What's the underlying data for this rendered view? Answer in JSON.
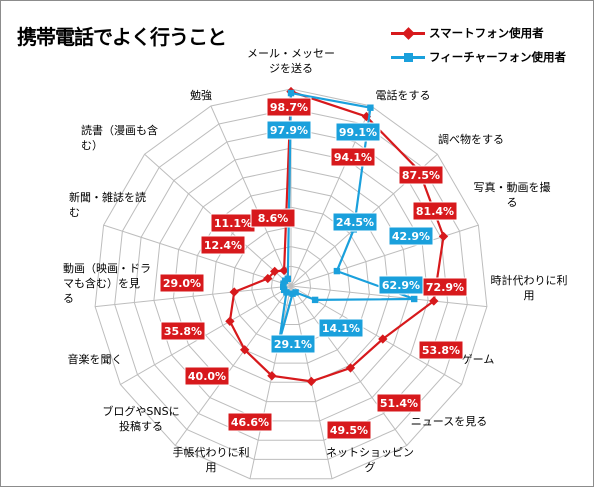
{
  "title": "携帯電話でよく行うこと",
  "legend": {
    "smart": "スマートフォン使用者",
    "feature": "フィーチャーフォン使用者"
  },
  "colors": {
    "smart": "#d7191c",
    "feature": "#1aa0dc",
    "grid": "#bdbdbd"
  },
  "chart_data": {
    "type": "radar",
    "title": "携帯電話でよく行うこと",
    "rmax": 100,
    "categories": [
      "メール・メッセージを送る",
      "電話をする",
      "調べ物をする",
      "写真・動画を撮る",
      "時計代わりに利用",
      "ゲーム",
      "ニュースを見る",
      "ネットショッピング",
      "手帳代わりに利用",
      "ブログやSNSに投稿する",
      "音楽を聞く",
      "動画（映画・ドラマも含む）を見る",
      "新聞・雑誌を読む",
      "読書（漫画も含む）",
      "勉強"
    ],
    "series": [
      {
        "name": "スマートフォン使用者",
        "values": [
          98.7,
          94.1,
          87.5,
          81.4,
          72.9,
          53.8,
          51.4,
          49.5,
          46.6,
          40.0,
          35.8,
          29.0,
          12.4,
          11.1,
          8.6
        ],
        "labels": [
          "98.7%",
          "94.1%",
          "87.5%",
          "81.4%",
          "72.9%",
          "53.8%",
          "51.4%",
          "49.5%",
          "46.6%",
          "40.0%",
          "35.8%",
          "29.0%",
          "12.4%",
          "11.1%",
          "8.6%"
        ]
      },
      {
        "name": "フィーチャーフォン使用者",
        "values": [
          97.9,
          99.1,
          42.9,
          24.5,
          62.9,
          14.1,
          4.0,
          4.0,
          29.1,
          4.0,
          4.0,
          4.0,
          4.0,
          4.0,
          4.0
        ],
        "labels": [
          "97.9%",
          "99.1%",
          "42.9%",
          "24.5%",
          "62.9%",
          "14.1%",
          null,
          null,
          "29.1%",
          null,
          null,
          null,
          null,
          null,
          null
        ]
      }
    ]
  }
}
